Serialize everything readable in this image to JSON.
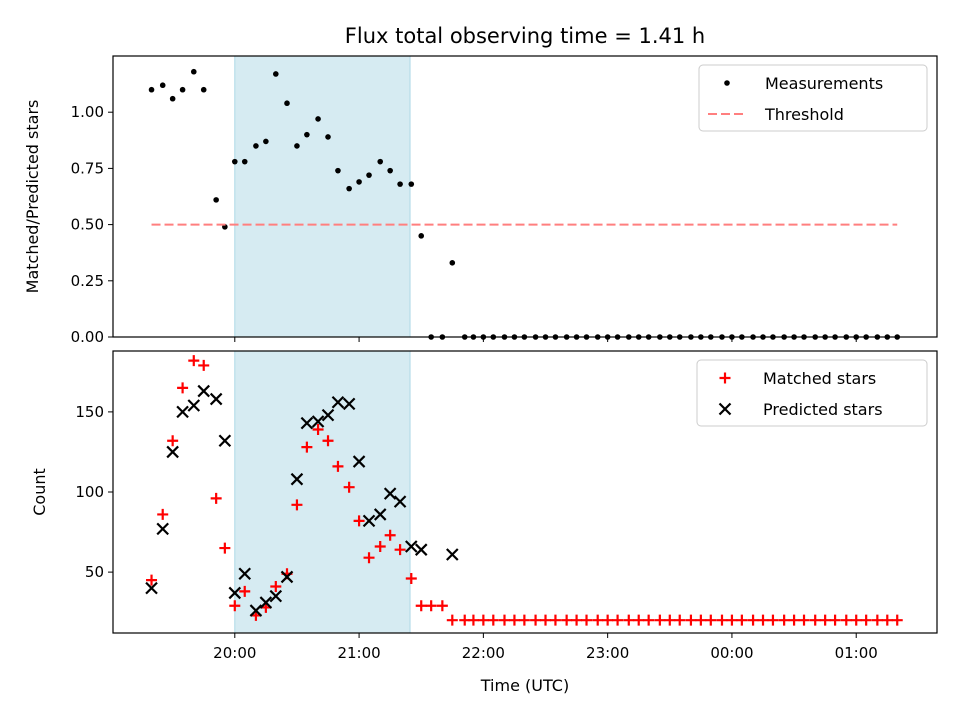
{
  "chart_data": {
    "title": "Flux total observing time = 1.41 h",
    "xlabel": "Time (UTC)",
    "x_ticks": [
      "20:00",
      "21:00",
      "22:00",
      "23:00",
      "00:00",
      "01:00"
    ],
    "x_tick_values_hours": [
      20,
      21,
      22,
      23,
      24,
      25
    ],
    "xlim_hours": [
      19.02,
      25.65
    ],
    "shaded_interval_hours": [
      20.0,
      21.41
    ],
    "colors": {
      "shade": "#add8e6",
      "threshold": "#ff7f7f",
      "matched": "#ff0000",
      "predicted": "#000000",
      "measurements": "#000000"
    },
    "panels": [
      {
        "type": "scatter",
        "ylabel": "Matched/Predicted stars",
        "ylim": [
          0,
          1.25
        ],
        "y_ticks": [
          "0.00",
          "0.25",
          "0.50",
          "0.75",
          "1.00"
        ],
        "y_tick_values": [
          0,
          0.25,
          0.5,
          0.75,
          1.0
        ],
        "legend_position": "top-right",
        "series": [
          {
            "name": "Measurements",
            "marker": "dot",
            "x": [
              19.33,
              19.42,
              19.5,
              19.58,
              19.67,
              19.75,
              19.85,
              19.92,
              20.0,
              20.08,
              20.17,
              20.25,
              20.33,
              20.42,
              20.5,
              20.58,
              20.67,
              20.75,
              20.83,
              20.92,
              21.0,
              21.08,
              21.17,
              21.25,
              21.33,
              21.42,
              21.5,
              21.58,
              21.67,
              21.75,
              21.85,
              21.92,
              22.0,
              22.08,
              22.17,
              22.25,
              22.33,
              22.42,
              22.5,
              22.58,
              22.67,
              22.75,
              22.83,
              22.92,
              23.0,
              23.08,
              23.17,
              23.25,
              23.33,
              23.42,
              23.5,
              23.58,
              23.67,
              23.75,
              23.83,
              23.92,
              24.0,
              24.08,
              24.17,
              24.25,
              24.33,
              24.42,
              24.5,
              24.58,
              24.67,
              24.75,
              24.83,
              24.92,
              25.0,
              25.08,
              25.17,
              25.25,
              25.33
            ],
            "y": [
              1.1,
              1.12,
              1.06,
              1.1,
              1.18,
              1.1,
              0.61,
              0.49,
              0.78,
              0.78,
              0.85,
              0.87,
              1.17,
              1.04,
              0.85,
              0.9,
              0.97,
              0.89,
              0.74,
              0.66,
              0.69,
              0.72,
              0.78,
              0.74,
              0.68,
              0.68,
              0.45,
              0,
              0,
              0.33,
              0,
              0,
              0,
              0,
              0,
              0,
              0,
              0,
              0,
              0,
              0,
              0,
              0,
              0,
              0,
              0,
              0,
              0,
              0,
              0,
              0,
              0,
              0,
              0,
              0,
              0,
              0,
              0,
              0,
              0,
              0,
              0,
              0,
              0,
              0,
              0,
              0,
              0,
              0,
              0,
              0,
              0,
              0
            ]
          },
          {
            "name": "Threshold",
            "marker": "dashed-line",
            "x": [
              19.33,
              25.33
            ],
            "y": [
              0.5,
              0.5
            ]
          }
        ]
      },
      {
        "type": "scatter",
        "ylabel": "Count",
        "ylim": [
          12,
          188
        ],
        "y_ticks": [
          "50",
          "100",
          "150"
        ],
        "y_tick_values": [
          50,
          100,
          150
        ],
        "legend_position": "top-right",
        "series": [
          {
            "name": "Matched stars",
            "marker": "plus",
            "x": [
              19.33,
              19.42,
              19.5,
              19.58,
              19.67,
              19.75,
              19.85,
              19.92,
              20.0,
              20.08,
              20.17,
              20.25,
              20.33,
              20.42,
              20.5,
              20.58,
              20.67,
              20.75,
              20.83,
              20.92,
              21.0,
              21.08,
              21.17,
              21.25,
              21.33,
              21.42,
              21.5,
              21.58,
              21.67,
              21.75,
              21.85,
              21.92,
              22.0,
              22.08,
              22.17,
              22.25,
              22.33,
              22.42,
              22.5,
              22.58,
              22.67,
              22.75,
              22.83,
              22.92,
              23.0,
              23.08,
              23.17,
              23.25,
              23.33,
              23.42,
              23.5,
              23.58,
              23.67,
              23.75,
              23.83,
              23.92,
              24.0,
              24.08,
              24.17,
              24.25,
              24.33,
              24.42,
              24.5,
              24.58,
              24.67,
              24.75,
              24.83,
              24.92,
              25.0,
              25.08,
              25.17,
              25.25,
              25.33
            ],
            "y": [
              45,
              86,
              132,
              165,
              182,
              179,
              96,
              65,
              29,
              38,
              23,
              28,
              41,
              49,
              92,
              128,
              139,
              132,
              116,
              103,
              82,
              59,
              66,
              73,
              64,
              46,
              29,
              29,
              29,
              20,
              20,
              20,
              20,
              20,
              20,
              20,
              20,
              20,
              20,
              20,
              20,
              20,
              20,
              20,
              20,
              20,
              20,
              20,
              20,
              20,
              20,
              20,
              20,
              20,
              20,
              20,
              20,
              20,
              20,
              20,
              20,
              20,
              20,
              20,
              20,
              20,
              20,
              20,
              20,
              20,
              20,
              20,
              20
            ]
          },
          {
            "name": "Predicted stars",
            "marker": "x",
            "x": [
              19.33,
              19.42,
              19.5,
              19.58,
              19.67,
              19.75,
              19.85,
              19.92,
              20.0,
              20.08,
              20.17,
              20.25,
              20.33,
              20.42,
              20.5,
              20.58,
              20.67,
              20.75,
              20.83,
              20.92,
              21.0,
              21.08,
              21.17,
              21.25,
              21.33,
              21.42,
              21.5,
              21.75
            ],
            "y": [
              40,
              77,
              125,
              150,
              154,
              163,
              158,
              132,
              37,
              49,
              26,
              31,
              35,
              47,
              108,
              143,
              144,
              148,
              156,
              155,
              119,
              82,
              86,
              99,
              94,
              66,
              64,
              61
            ]
          }
        ]
      }
    ]
  }
}
